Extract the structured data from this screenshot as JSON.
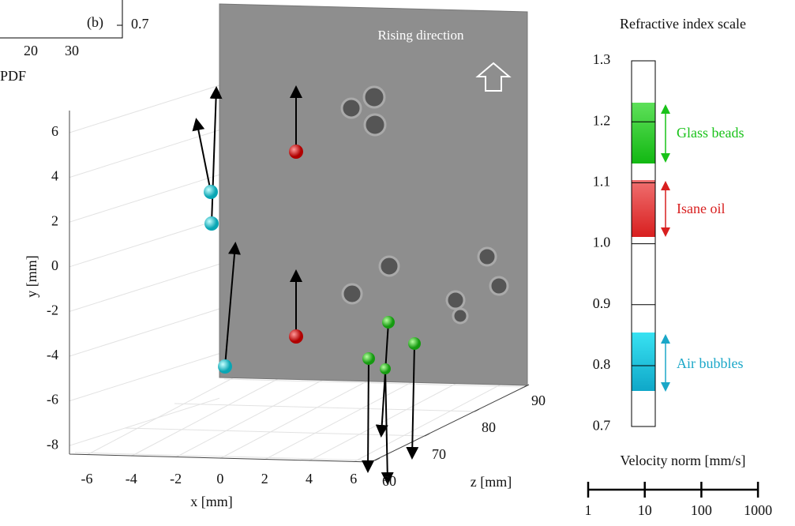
{
  "panel_b": {
    "label": "(b)",
    "tick": "0.7",
    "x_ticks": [
      "20",
      "30"
    ],
    "x_label": "PDF"
  },
  "plot": {
    "image_text": "Rising direction",
    "y_label": "y [mm]",
    "x_label": "x [mm]",
    "z_label": "z [mm]",
    "y_ticks": [
      "6",
      "4",
      "2",
      "0",
      "-2",
      "-4",
      "-6",
      "-8"
    ],
    "x_ticks": [
      "-6",
      "-4",
      "-2",
      "0",
      "2",
      "4",
      "6"
    ],
    "z_ticks": [
      "60",
      "70",
      "80",
      "90"
    ]
  },
  "scale": {
    "title": "Refractive index scale",
    "ticks": [
      "1.3",
      "1.2",
      "1.1",
      "1.0",
      "0.9",
      "0.8",
      "0.7"
    ],
    "bands": [
      {
        "label": "Glass beads"
      },
      {
        "label": "Isane oil"
      },
      {
        "label": "Air bubbles"
      }
    ]
  },
  "velocity": {
    "title": "Velocity norm [mm/s]",
    "ticks": [
      "1",
      "10",
      "100",
      "1000"
    ]
  }
}
